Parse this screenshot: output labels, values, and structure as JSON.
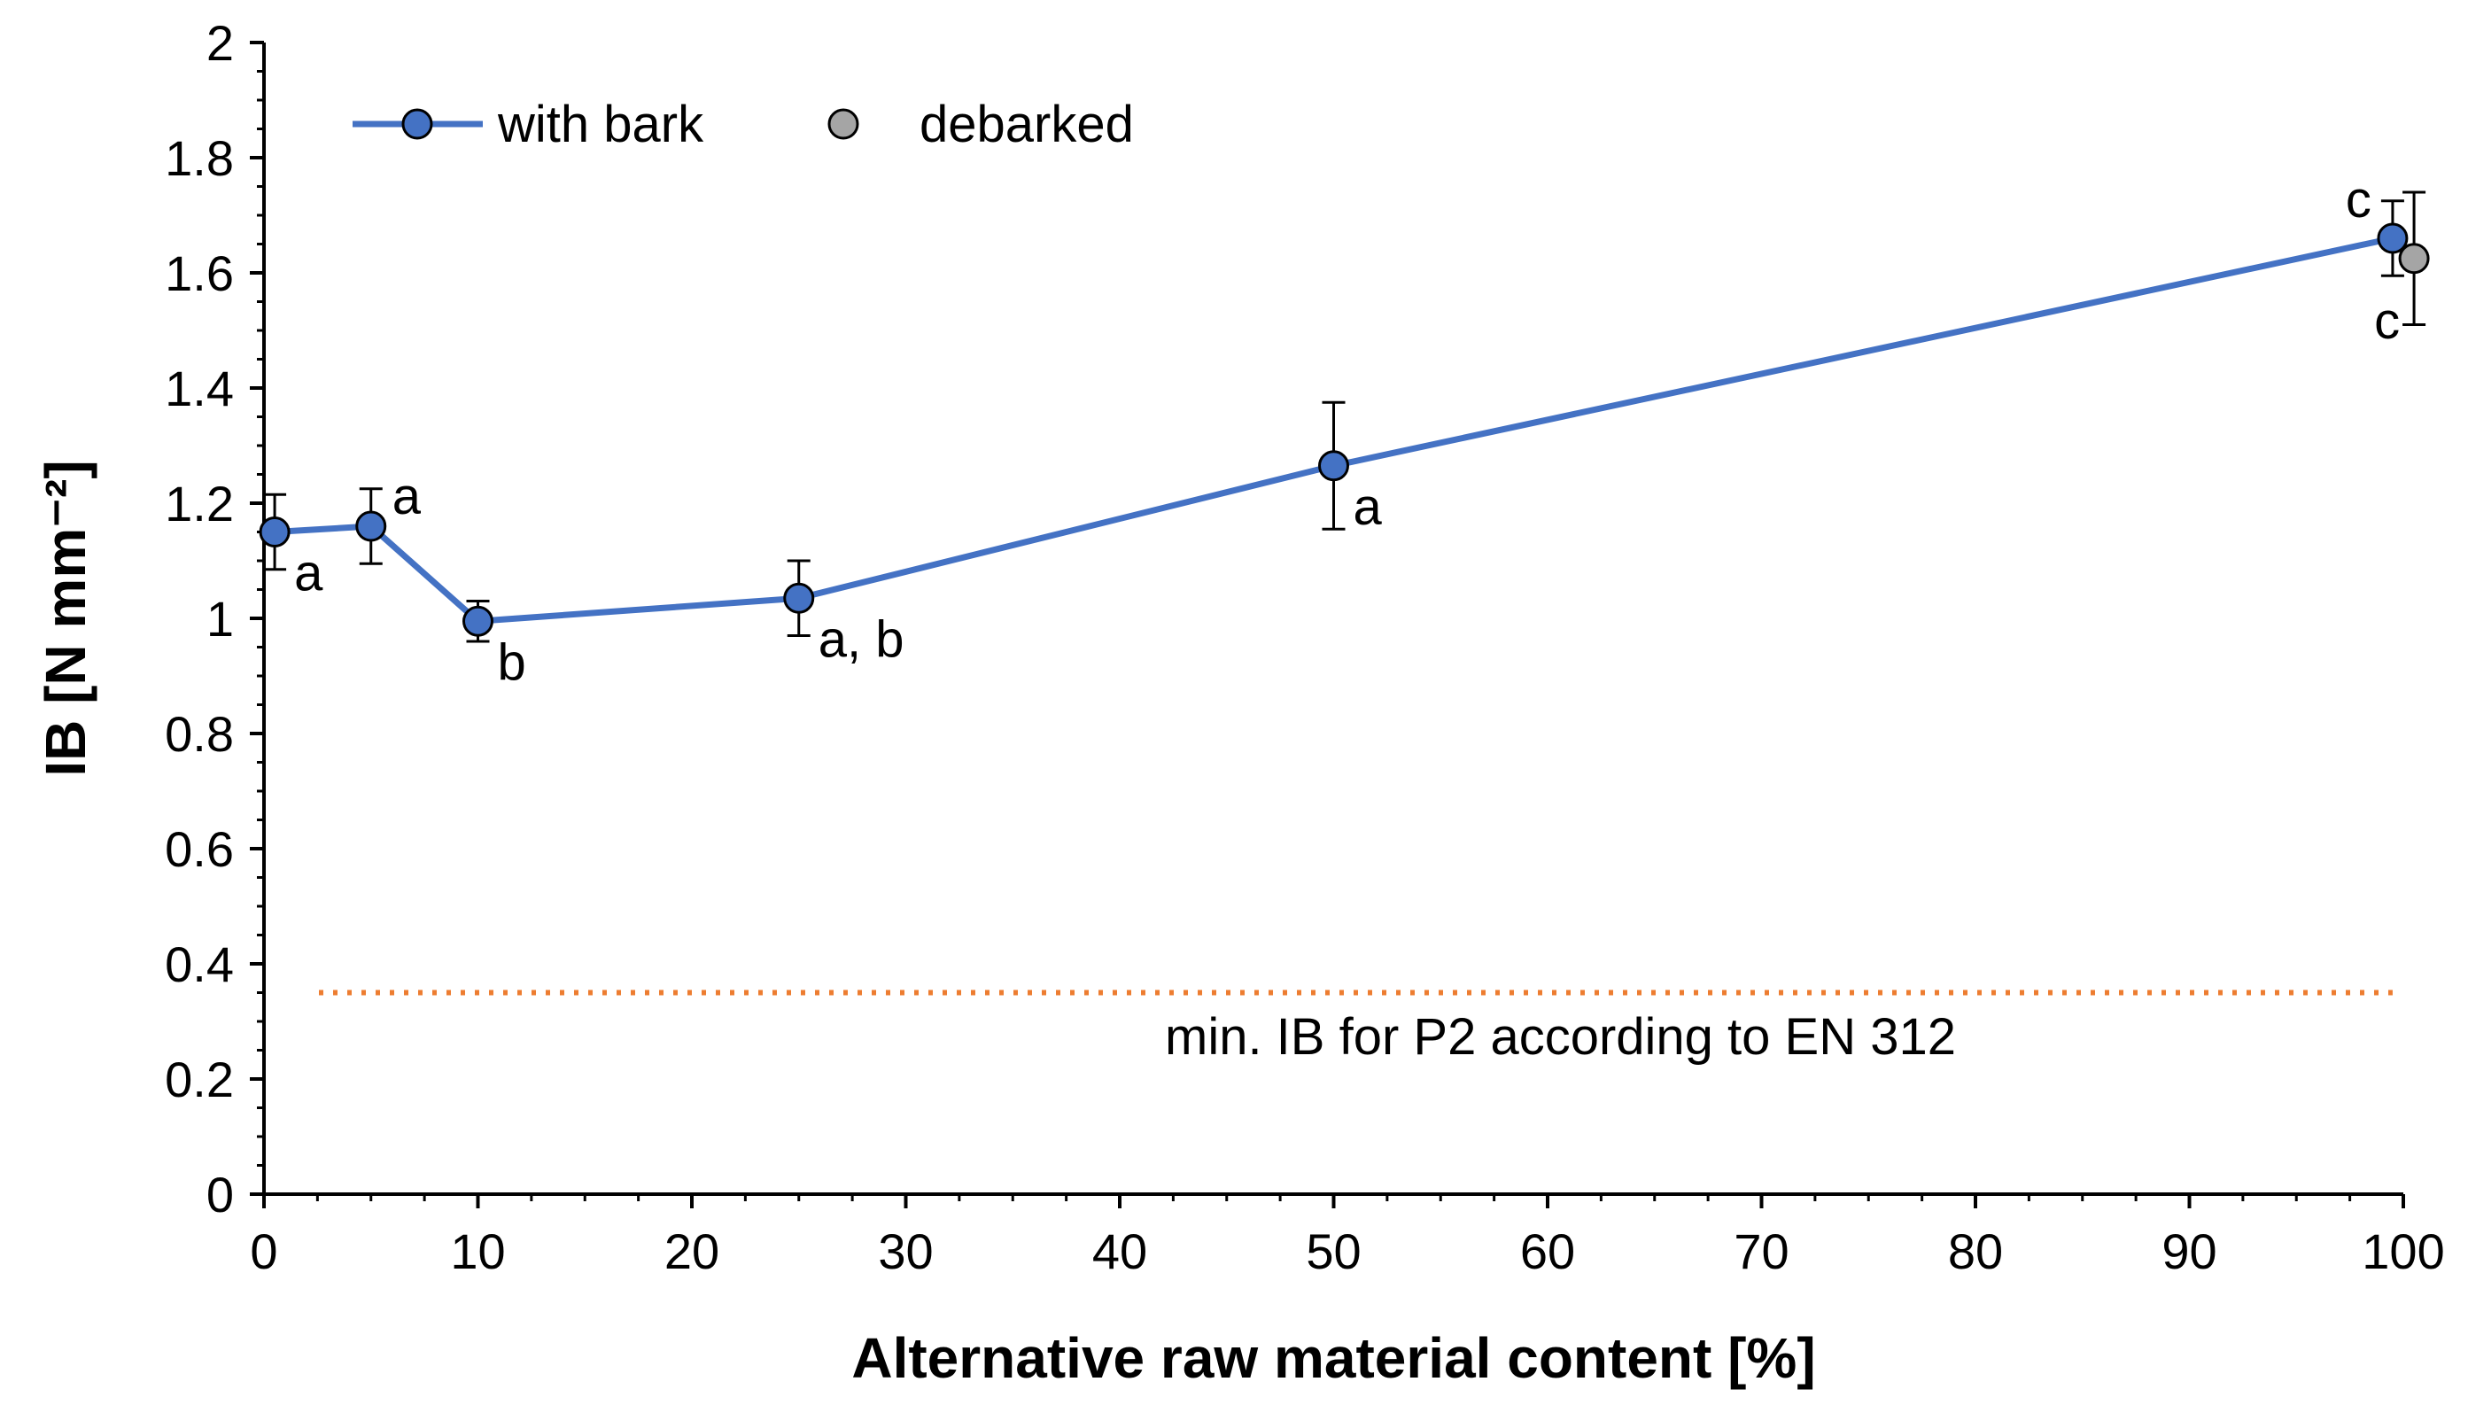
{
  "chart_data": {
    "type": "line",
    "title": "",
    "xlabel": "Alternative raw material content [%]",
    "ylabel": "IB [N mm⁻²]",
    "xlim": [
      0,
      100
    ],
    "ylim": [
      0,
      2
    ],
    "x_ticks": [
      0,
      10,
      20,
      30,
      40,
      50,
      60,
      70,
      80,
      90,
      100
    ],
    "y_ticks": [
      0,
      0.2,
      0.4,
      0.6,
      0.8,
      1,
      1.2,
      1.4,
      1.6,
      1.8,
      2
    ],
    "x_tick_labels": [
      "0",
      "10",
      "20",
      "30",
      "40",
      "50",
      "60",
      "70",
      "80",
      "90",
      "100"
    ],
    "y_tick_labels": [
      "0",
      "0.2",
      "0.4",
      "0.6",
      "0.8",
      "1",
      "1.2",
      "1.4",
      "1.6",
      "1.8",
      "2"
    ],
    "grid": false,
    "legend": "top-left",
    "series": [
      {
        "name": "with bark",
        "color": "#4472c4",
        "line": true,
        "points": [
          {
            "x": 0.5,
            "y": 1.15,
            "err": 0.065,
            "label": "a",
            "label_pos": "below-right"
          },
          {
            "x": 5,
            "y": 1.16,
            "err": 0.065,
            "label": "a",
            "label_pos": "above-right"
          },
          {
            "x": 10,
            "y": 0.995,
            "err": 0.035,
            "label": "b",
            "label_pos": "below-right"
          },
          {
            "x": 25,
            "y": 1.035,
            "err": 0.065,
            "label": "a, b",
            "label_pos": "below-right"
          },
          {
            "x": 50,
            "y": 1.265,
            "err": 0.11,
            "label": "a",
            "label_pos": "below-right"
          },
          {
            "x": 99.5,
            "y": 1.66,
            "err": 0.065,
            "label": "c",
            "label_pos": "above-left"
          }
        ]
      },
      {
        "name": "debarked",
        "color": "#a5a5a5",
        "line": false,
        "points": [
          {
            "x": 100.5,
            "y": 1.625,
            "err": 0.115,
            "label": "c",
            "label_pos": "below-left"
          }
        ]
      }
    ],
    "reference_line": {
      "y": 0.35,
      "x_from": 0,
      "x_to": 99.5,
      "color": "#ed7d31",
      "style": "dotted",
      "label": "min. IB for P2 according to EN 312"
    }
  }
}
